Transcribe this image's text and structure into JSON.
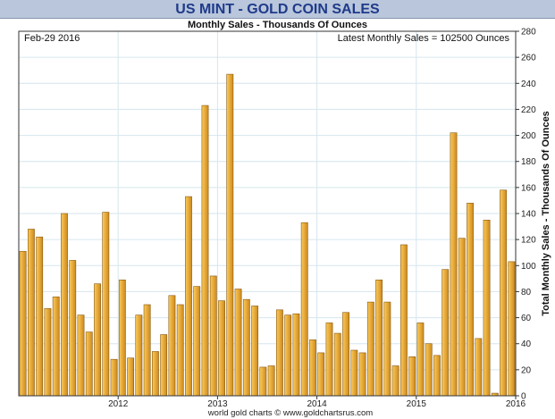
{
  "chart_data": {
    "type": "bar",
    "title": "US MINT - GOLD COIN SALES",
    "subtitle": "Monthly Sales - Thousands Of Ounces",
    "date_label": "Feb-29  2016",
    "latest_label": "Latest Monthly Sales = 102500 Ounces",
    "ylabel": "Total Monthly Sales - Thousands Of Ounces",
    "footer": "world gold charts © www.goldchartsrus.com",
    "ylim": [
      0,
      280
    ],
    "yticks": [
      "0",
      "20",
      "40",
      "60",
      "80",
      "100",
      "120",
      "140",
      "160",
      "180",
      "200",
      "220",
      "240",
      "260",
      "280"
    ],
    "xticks": [
      {
        "label": "2012",
        "month": 12
      },
      {
        "label": "2013",
        "month": 24
      },
      {
        "label": "2014",
        "month": 36
      },
      {
        "label": "2015",
        "month": 48
      },
      {
        "label": "2016",
        "month": 60
      }
    ],
    "grid": true,
    "bar_color": "#e8a93a",
    "values": [
      111,
      128,
      122,
      67,
      76,
      140,
      104,
      62,
      49,
      86,
      141,
      28,
      89,
      29,
      62,
      70,
      34,
      47,
      77,
      70,
      153,
      84,
      223,
      92,
      73,
      247,
      82,
      74,
      69,
      22,
      23,
      66,
      62,
      63,
      133,
      43,
      33,
      56,
      48,
      64,
      35,
      33,
      72,
      89,
      72,
      23,
      116,
      30,
      56,
      40,
      31,
      97,
      202,
      121,
      148,
      44,
      135,
      2,
      158,
      103
    ]
  }
}
